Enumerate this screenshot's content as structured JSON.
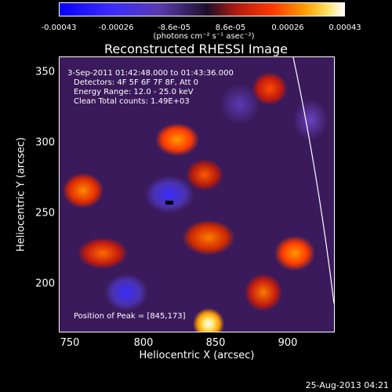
{
  "colorbar": {
    "ticks": [
      "-0.00043",
      "-0.00026",
      "-8.6e-05",
      "8.6e-05",
      "0.00026",
      "0.00043"
    ],
    "units": "(photons cm⁻² s⁻¹ asec⁻²)"
  },
  "title": "Reconstructed RHESSI Image",
  "info": {
    "time_range": "3-Sep-2011 01:42:48.000 to 01:43:36.000",
    "detectors": "Detectors: 4F 5F 6F 7F 8F, Att 0",
    "energy": "Energy Range: 12.0 - 25.0 keV",
    "clean": "Clean     Total counts: 1.49E+03",
    "peak": "Position of Peak = [845,173]"
  },
  "axes": {
    "x_ticks": [
      "750",
      "800",
      "850",
      "900"
    ],
    "y_ticks": [
      "350",
      "300",
      "250",
      "200"
    ],
    "xlabel": "Heliocentric X (arcsec)",
    "ylabel": "Heliocentric Y (arcsec)"
  },
  "timestamp": "25-Aug-2013 04:21"
}
